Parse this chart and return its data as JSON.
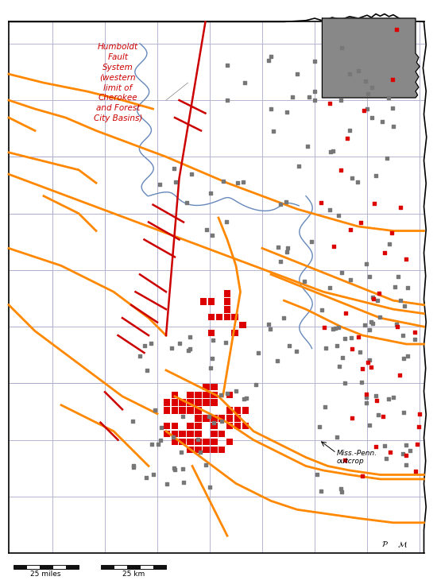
{
  "background_color": "#ffffff",
  "county_line_color": "#aaaacc",
  "state_border_color": "#000000",
  "fault_color": "#cc0000",
  "pipeline_color": "#ff8800",
  "well_color_red": "#dd0000",
  "well_color_gray": "#777777",
  "river_color": "#6688bb",
  "scale_bar_color": "#111111",
  "fault_label": "Humboldt\nFault\nSystem\n(western\nlimit of\nCherokee\nand Forest\nCity Basins)",
  "miss_penn_label": "Miss.-Penn.\noutcrop",
  "scale_miles": "25 miles",
  "scale_km": "25 km",
  "figsize": [
    5.5,
    7.4
  ],
  "dpi": 100,
  "xlim": [
    0,
    100
  ],
  "ylim": [
    0,
    135
  ]
}
